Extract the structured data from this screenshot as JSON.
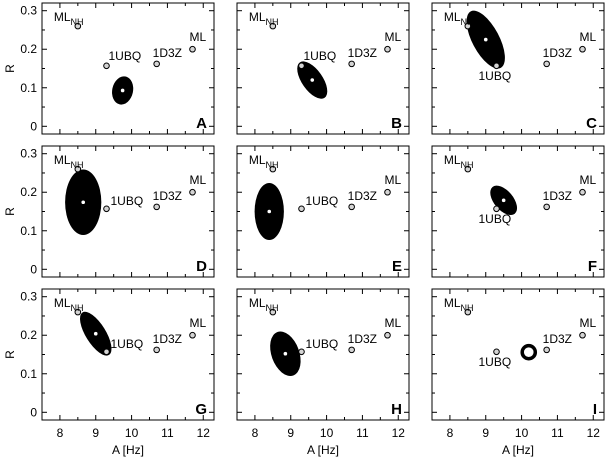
{
  "chart_data": {
    "type": "scatter",
    "xlabel": "A [Hz]",
    "ylabel": "R",
    "xlim": [
      7.5,
      12.3
    ],
    "ylim": [
      -0.02,
      0.32
    ],
    "xticks": [
      "8",
      "9",
      "10",
      "11",
      "12"
    ],
    "yticks": [
      "0",
      "0.1",
      "0.2",
      "0.3"
    ],
    "reference_points": [
      {
        "label": "ML",
        "sub": "NH",
        "x": 8.5,
        "y": 0.26
      },
      {
        "label": "1UBQ",
        "sub": "",
        "x": 9.3,
        "y": 0.157
      },
      {
        "label": "1D3Z",
        "sub": "",
        "x": 10.7,
        "y": 0.162
      },
      {
        "label": "ML",
        "sub": "",
        "x": 11.7,
        "y": 0.2
      }
    ],
    "panels": [
      {
        "label": "A",
        "center": [
          9.75,
          0.093
        ],
        "semi_major": 0.037,
        "semi_minor": 0.027,
        "angle_deg": 12,
        "ubq_label_pos": "above"
      },
      {
        "label": "B",
        "center": [
          9.6,
          0.12
        ],
        "semi_major": 0.056,
        "semi_minor": 0.027,
        "angle_deg": -35,
        "ubq_label_pos": "above"
      },
      {
        "label": "C",
        "center": [
          9.0,
          0.225
        ],
        "semi_major": 0.083,
        "semi_minor": 0.035,
        "angle_deg": -28,
        "ubq_label_pos": "below"
      },
      {
        "label": "D",
        "center": [
          8.65,
          0.174
        ],
        "semi_major": 0.085,
        "semi_minor": 0.047,
        "angle_deg": 0,
        "ubq_label_pos": "right"
      },
      {
        "label": "E",
        "center": [
          8.4,
          0.15
        ],
        "semi_major": 0.074,
        "semi_minor": 0.038,
        "angle_deg": 0,
        "ubq_label_pos": "right"
      },
      {
        "label": "F",
        "center": [
          9.5,
          0.179
        ],
        "semi_major": 0.045,
        "semi_minor": 0.025,
        "angle_deg": -40,
        "ubq_label_pos": "below"
      },
      {
        "label": "G",
        "center": [
          9.0,
          0.204
        ],
        "semi_major": 0.065,
        "semi_minor": 0.026,
        "angle_deg": -32,
        "ubq_label_pos": "right"
      },
      {
        "label": "H",
        "center": [
          8.85,
          0.152
        ],
        "semi_major": 0.06,
        "semi_minor": 0.036,
        "angle_deg": -20,
        "ubq_label_pos": "right"
      },
      {
        "label": "I",
        "center": [
          10.2,
          0.156
        ],
        "semi_major": 0.017,
        "semi_minor": 0.014,
        "angle_deg": 0,
        "ubq_label_pos": "below",
        "style": "ring"
      }
    ]
  }
}
